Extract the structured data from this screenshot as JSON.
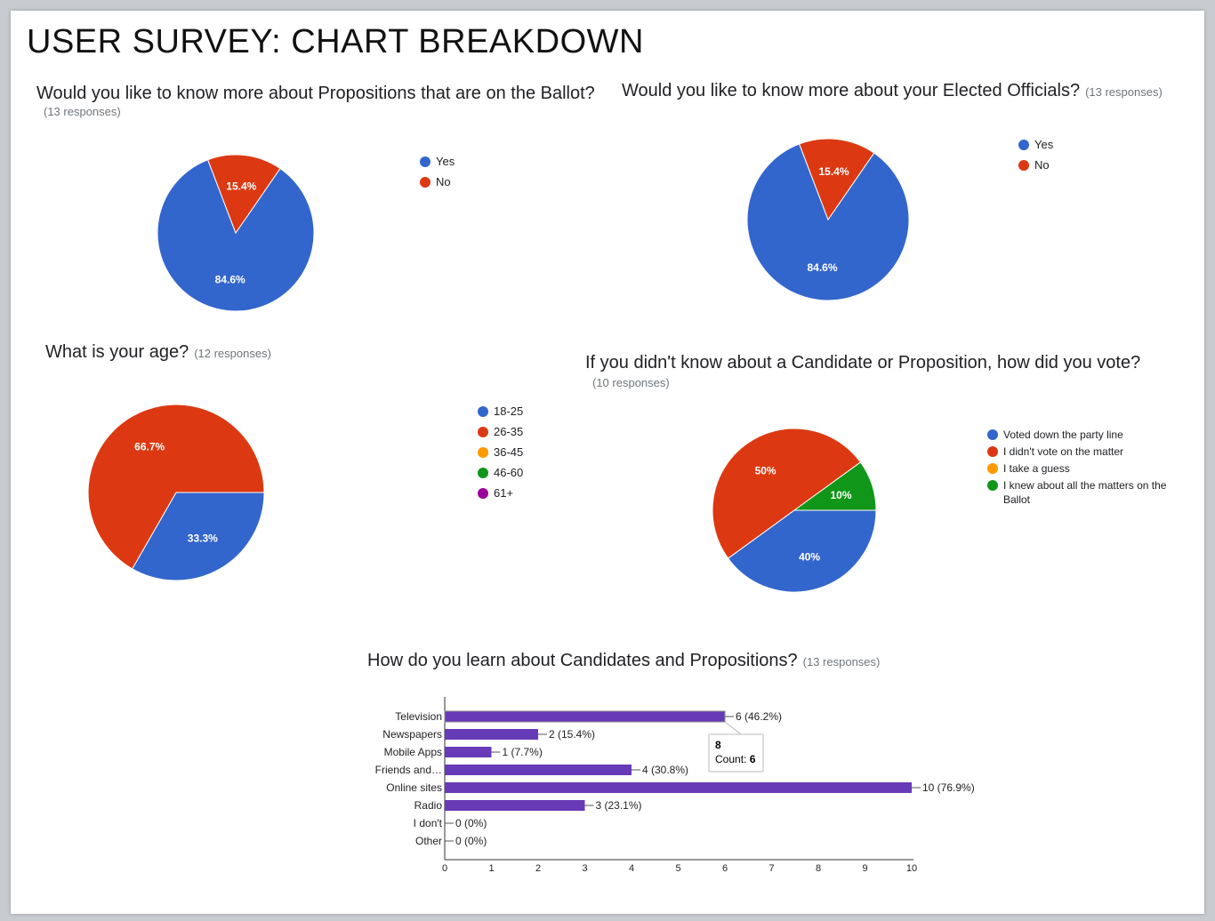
{
  "page": {
    "title": "USER SURVEY: CHART BREAKDOWN"
  },
  "chart_data": [
    {
      "type": "pie",
      "title": "Would you like to know more about Propositions that are on the Ballot?",
      "responses": "(13 responses)",
      "slices": [
        {
          "label": "Yes",
          "value": 84.6,
          "display": "84.6%",
          "color": "#3366cc"
        },
        {
          "label": "No",
          "value": 15.4,
          "display": "15.4%",
          "color": "#dc3912"
        }
      ],
      "legend": [
        "Yes",
        "No"
      ]
    },
    {
      "type": "pie",
      "title": "Would you like to know more about your Elected Officials?",
      "responses": "(13 responses)",
      "slices": [
        {
          "label": "Yes",
          "value": 84.6,
          "display": "84.6%",
          "color": "#3366cc"
        },
        {
          "label": "No",
          "value": 15.4,
          "display": "15.4%",
          "color": "#dc3912"
        }
      ],
      "legend": [
        "Yes",
        "No"
      ]
    },
    {
      "type": "pie",
      "title": "What is your age?",
      "responses": "(12 responses)",
      "slices": [
        {
          "label": "18-25",
          "value": 33.3,
          "display": "33.3%",
          "color": "#3366cc"
        },
        {
          "label": "26-35",
          "value": 66.7,
          "display": "66.7%",
          "color": "#dc3912"
        },
        {
          "label": "36-45",
          "value": 0,
          "display": "",
          "color": "#ff9900"
        },
        {
          "label": "46-60",
          "value": 0,
          "display": "",
          "color": "#109618"
        },
        {
          "label": "61+",
          "value": 0,
          "display": "",
          "color": "#990099"
        }
      ],
      "legend": [
        "18-25",
        "26-35",
        "36-45",
        "46-60",
        "61+"
      ]
    },
    {
      "type": "pie",
      "title": "If you didn't know about a Candidate or Proposition, how did you vote?",
      "responses": "(10 responses)",
      "slices": [
        {
          "label": "Voted down the party line",
          "value": 40,
          "display": "40%",
          "color": "#3366cc"
        },
        {
          "label": "I didn't vote on the matter",
          "value": 50,
          "display": "50%",
          "color": "#dc3912"
        },
        {
          "label": "I take a guess",
          "value": 0,
          "display": "",
          "color": "#ff9900"
        },
        {
          "label": "I knew about all the matters on the Ballot",
          "value": 10,
          "display": "10%",
          "color": "#109618"
        }
      ],
      "legend": [
        "Voted down the party line",
        "I didn't vote on the matter",
        "I take a guess",
        "I knew about all the matters on the Ballot"
      ]
    },
    {
      "type": "bar",
      "orientation": "horizontal",
      "title": "How do you learn about Candidates and Propositions?",
      "responses": "(13 responses)",
      "categories": [
        "Television",
        "Newspapers",
        "Mobile Apps",
        "Friends and…",
        "Online sites",
        "Radio",
        "I don't",
        "Other"
      ],
      "values": [
        6,
        2,
        1,
        4,
        10,
        3,
        0,
        0
      ],
      "value_labels": [
        "6 (46.2%)",
        "2 (15.4%)",
        "1 (7.7%)",
        "4 (30.8%)",
        "10 (76.9%)",
        "3 (23.1%)",
        "0 (0%)",
        "0 (0%)"
      ],
      "xlim": [
        0,
        10
      ],
      "xticks": [
        "0",
        "1",
        "2",
        "3",
        "4",
        "5",
        "6",
        "7",
        "8",
        "9",
        "10"
      ],
      "color": "#673ab7",
      "tooltip": {
        "title": "8",
        "label": "Count:",
        "value": "6"
      }
    }
  ]
}
